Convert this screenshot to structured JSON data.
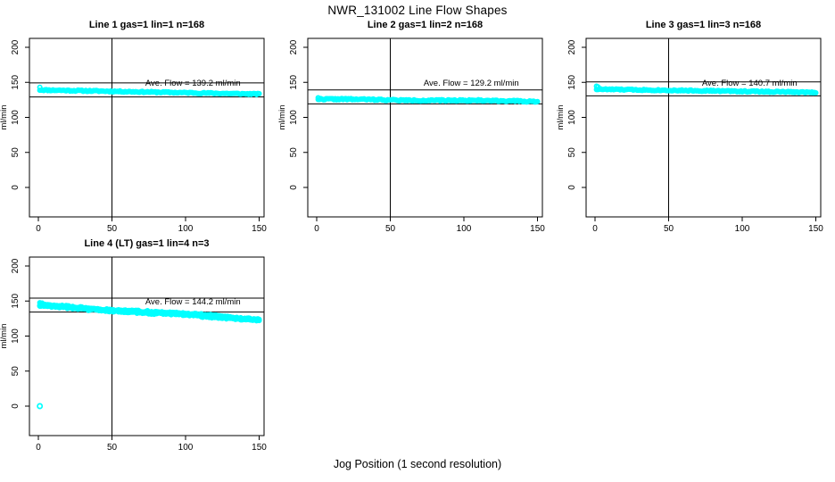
{
  "figure": {
    "title": "NWR_131002  Line Flow Shapes",
    "xlabel": "Jog Position (1 second resolution)",
    "ylabel": "ml/min",
    "background": "#FFFFFF",
    "frame_color": "#000000",
    "point_color": "#00FFFF"
  },
  "chart_data": [
    {
      "type": "scatter",
      "title": "Line 1 gas=1 lin=1 n=168",
      "annotation": "Ave. Flow =  139.2  ml/min",
      "avg_flow_ml_min": 139.2,
      "n": 168,
      "xlim": [
        0,
        150
      ],
      "ylim": [
        0,
        200
      ],
      "x_ticks": [
        0,
        50,
        100,
        150
      ],
      "y_ticks": [
        0,
        50,
        100,
        150,
        200
      ],
      "ref_vertical_x": 50,
      "ref_line_upper": 149.2,
      "ref_line_lower": 129.2,
      "annotation_pos": {
        "x": 105,
        "y": 150
      },
      "series": {
        "x_start": 1,
        "x_end": 150,
        "n_points": 168,
        "baseline": 139.2,
        "slope": -0.004,
        "jitter": 0.9,
        "wave_amp": 0,
        "passes": 1,
        "seed": 11
      },
      "lead_points": [
        {
          "x": 1,
          "y": 143
        }
      ],
      "zero_points": []
    },
    {
      "type": "scatter",
      "title": "Line 2 gas=1 lin=2 n=168",
      "annotation": "Ave. Flow =  129.2  ml/min",
      "avg_flow_ml_min": 129.2,
      "n": 168,
      "xlim": [
        0,
        150
      ],
      "ylim": [
        0,
        200
      ],
      "x_ticks": [
        0,
        50,
        100,
        150
      ],
      "y_ticks": [
        0,
        50,
        100,
        150,
        200
      ],
      "ref_vertical_x": 50,
      "ref_line_upper": 139.2,
      "ref_line_lower": 119.2,
      "annotation_pos": {
        "x": 105,
        "y": 150
      },
      "series": {
        "x_start": 1,
        "x_end": 150,
        "n_points": 168,
        "baseline": 126.0,
        "slope": -0.002,
        "jitter": 1.0,
        "wave_amp": 0.4,
        "passes": 1,
        "seed": 22
      },
      "lead_points": [
        {
          "x": 1,
          "y": 128
        }
      ],
      "zero_points": []
    },
    {
      "type": "scatter",
      "title": "Line 3 gas=1 lin=3 n=168",
      "annotation": "Ave. Flow =  140.7  ml/min",
      "avg_flow_ml_min": 140.7,
      "n": 168,
      "xlim": [
        0,
        150
      ],
      "ylim": [
        0,
        200
      ],
      "x_ticks": [
        0,
        50,
        100,
        150
      ],
      "y_ticks": [
        0,
        50,
        100,
        150,
        200
      ],
      "ref_vertical_x": 50,
      "ref_line_upper": 150.7,
      "ref_line_lower": 130.7,
      "annotation_pos": {
        "x": 105,
        "y": 150
      },
      "series": {
        "x_start": 1,
        "x_end": 150,
        "n_points": 168,
        "baseline": 140.2,
        "slope": -0.003,
        "jitter": 0.9,
        "wave_amp": 0,
        "passes": 1,
        "seed": 33
      },
      "lead_points": [
        {
          "x": 1,
          "y": 144.5
        },
        {
          "x": 2,
          "y": 143.5
        }
      ],
      "zero_points": []
    },
    {
      "type": "scatter",
      "title": "Line 4 (LT) gas=1 lin=4 n=3",
      "annotation": "Ave. Flow =  144.2  ml/min",
      "avg_flow_ml_min": 144.2,
      "n": 3,
      "xlim": [
        0,
        150
      ],
      "ylim": [
        0,
        200
      ],
      "x_ticks": [
        0,
        50,
        100,
        150
      ],
      "y_ticks": [
        0,
        50,
        100,
        150,
        200
      ],
      "ref_vertical_x": 50,
      "ref_line_upper": 154.2,
      "ref_line_lower": 134.2,
      "annotation_pos": {
        "x": 105,
        "y": 150
      },
      "series": {
        "x_start": 1,
        "x_end": 150,
        "n_points": 168,
        "baseline": 143.5,
        "slope": -0.013,
        "jitter": 1.6,
        "wave_amp": 1.1,
        "passes": 3,
        "seed": 44
      },
      "lead_points": [
        {
          "x": 1,
          "y": 147.5
        },
        {
          "x": 1.8,
          "y": 146.5
        },
        {
          "x": 2.6,
          "y": 147
        }
      ],
      "zero_points": [
        {
          "x": 1,
          "y": 0
        }
      ]
    }
  ]
}
